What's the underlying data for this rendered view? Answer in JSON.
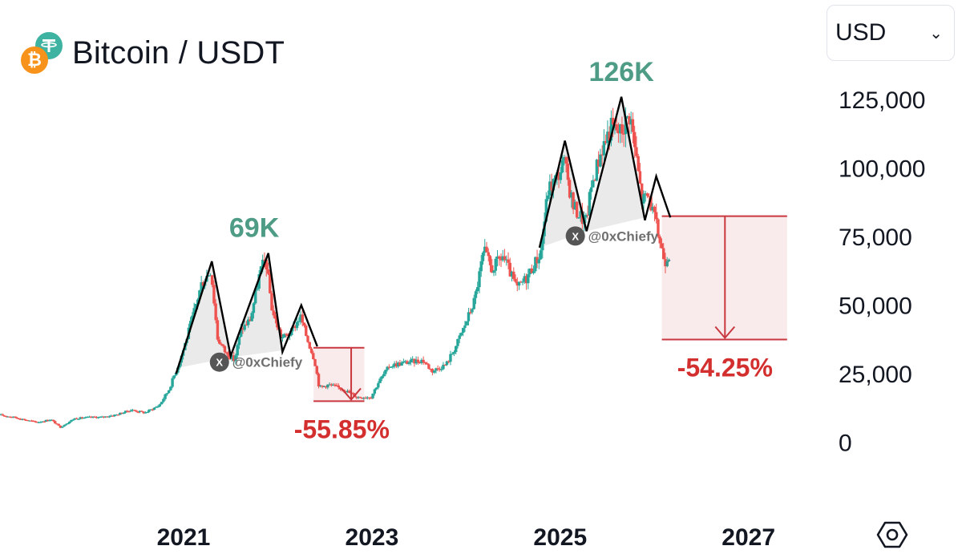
{
  "header": {
    "pair_title": "Bitcoin / USDT",
    "base_icon": "bitcoin-icon",
    "quote_icon": "tether-icon"
  },
  "currency_select": {
    "value": "USD",
    "icon": "chevron-down-icon"
  },
  "settings": {
    "icon": "settings-hexagon-icon"
  },
  "watermark": "@0xChiefy",
  "colors": {
    "up": "#26a69a",
    "down": "#ef5350",
    "peak_label": "#4e9c86",
    "drop_label": "#d32f2f",
    "drop_box": "#c9373f",
    "pattern_line": "#000000",
    "pattern_fill": "#d0d0d0"
  },
  "chart_data": {
    "type": "candlestick",
    "x_unit": "year",
    "xlim": [
      2019.05,
      2027.65
    ],
    "ylim": [
      -3000,
      135000
    ],
    "x_ticks": [
      {
        "value": 2021,
        "label": "2021"
      },
      {
        "value": 2023,
        "label": "2023"
      },
      {
        "value": 2025,
        "label": "2025"
      },
      {
        "value": 2027,
        "label": "2027"
      }
    ],
    "y_ticks": [
      {
        "value": 125000,
        "label": "125,000"
      },
      {
        "value": 100000,
        "label": "100,000"
      },
      {
        "value": 75000,
        "label": "75,000"
      },
      {
        "value": 50000,
        "label": "50,000"
      },
      {
        "value": 25000,
        "label": "25,000"
      },
      {
        "value": 0,
        "label": "0"
      }
    ],
    "price_series": [
      [
        2019.0,
        10300
      ],
      [
        2019.2,
        9200
      ],
      [
        2019.45,
        7300
      ],
      [
        2019.6,
        8300
      ],
      [
        2019.7,
        5500
      ],
      [
        2019.85,
        8700
      ],
      [
        2020.0,
        9100
      ],
      [
        2020.15,
        9200
      ],
      [
        2020.3,
        10100
      ],
      [
        2020.45,
        11800
      ],
      [
        2020.6,
        10800
      ],
      [
        2020.75,
        13500
      ],
      [
        2020.85,
        19000
      ],
      [
        2020.95,
        28000
      ],
      [
        2021.0,
        33000
      ],
      [
        2021.1,
        45000
      ],
      [
        2021.2,
        58000
      ],
      [
        2021.3,
        63000
      ],
      [
        2021.37,
        38000
      ],
      [
        2021.45,
        33000
      ],
      [
        2021.55,
        30000
      ],
      [
        2021.62,
        41000
      ],
      [
        2021.72,
        45000
      ],
      [
        2021.82,
        62000
      ],
      [
        2021.88,
        67000
      ],
      [
        2021.95,
        48000
      ],
      [
        2022.05,
        38000
      ],
      [
        2022.15,
        40000
      ],
      [
        2022.25,
        46000
      ],
      [
        2022.32,
        38000
      ],
      [
        2022.4,
        30000
      ],
      [
        2022.45,
        20000
      ],
      [
        2022.55,
        21000
      ],
      [
        2022.7,
        19500
      ],
      [
        2022.85,
        16500
      ],
      [
        2023.0,
        16600
      ],
      [
        2023.08,
        22000
      ],
      [
        2023.2,
        28000
      ],
      [
        2023.35,
        29000
      ],
      [
        2023.55,
        30000
      ],
      [
        2023.65,
        26000
      ],
      [
        2023.8,
        28500
      ],
      [
        2023.9,
        35000
      ],
      [
        2024.0,
        43000
      ],
      [
        2024.1,
        52000
      ],
      [
        2024.2,
        70000
      ],
      [
        2024.28,
        63000
      ],
      [
        2024.4,
        68000
      ],
      [
        2024.55,
        56000
      ],
      [
        2024.65,
        60000
      ],
      [
        2024.8,
        69000
      ],
      [
        2024.88,
        92000
      ],
      [
        2024.98,
        97000
      ],
      [
        2025.05,
        102000
      ],
      [
        2025.15,
        86000
      ],
      [
        2025.28,
        80000
      ],
      [
        2025.35,
        95000
      ],
      [
        2025.45,
        107000
      ],
      [
        2025.55,
        115000
      ],
      [
        2025.65,
        113000
      ],
      [
        2025.75,
        120000
      ],
      [
        2025.82,
        103000
      ],
      [
        2025.88,
        88000
      ],
      [
        2025.95,
        90000
      ],
      [
        2026.05,
        76000
      ],
      [
        2026.12,
        66000
      ],
      [
        2026.16,
        69000
      ]
    ],
    "patterns": [
      {
        "name": "2021-cycle-top",
        "points": [
          [
            2020.92,
            25000
          ],
          [
            2021.3,
            66000
          ],
          [
            2021.5,
            31500
          ],
          [
            2021.9,
            69000
          ],
          [
            2022.05,
            33000
          ],
          [
            2022.25,
            50000
          ],
          [
            2022.42,
            35000
          ]
        ],
        "baseline": [
          [
            2020.92,
            27000
          ],
          [
            2021.5,
            31000
          ],
          [
            2022.05,
            33500
          ]
        ]
      },
      {
        "name": "2025-cycle-top",
        "points": [
          [
            2024.78,
            71000
          ],
          [
            2025.05,
            110000
          ],
          [
            2025.28,
            77000
          ],
          [
            2025.65,
            126000
          ],
          [
            2025.9,
            81000
          ],
          [
            2026.02,
            97000
          ],
          [
            2026.17,
            82000
          ]
        ],
        "baseline": [
          [
            2024.78,
            71000
          ],
          [
            2025.28,
            77000
          ],
          [
            2025.9,
            82000
          ]
        ]
      }
    ],
    "peak_annotations": [
      {
        "label": "69K",
        "x": 2021.75,
        "y": 69000
      },
      {
        "label": "126K",
        "x": 2025.65,
        "y": 126000
      }
    ],
    "drawdowns": [
      {
        "label": "-55.85%",
        "x0": 2022.38,
        "x1": 2022.92,
        "y_top": 34500,
        "y_bottom": 15000,
        "arrow_x": 2022.78,
        "label_x": 2022.68
      },
      {
        "label": "-54.25%",
        "x0": 2026.08,
        "x1": 2027.41,
        "y_top": 82500,
        "y_bottom": 37500,
        "arrow_x": 2026.75,
        "label_x": 2026.75
      }
    ],
    "grid": false,
    "legend": "none"
  }
}
